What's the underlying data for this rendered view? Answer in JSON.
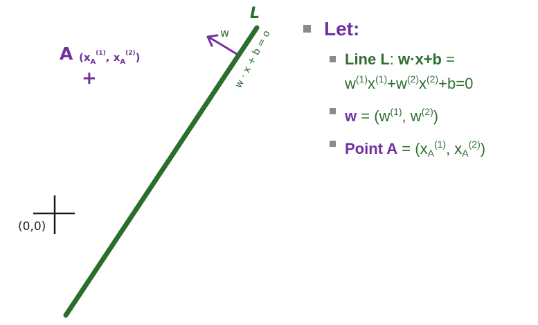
{
  "left": {
    "point_a_label": "A",
    "point_a_coord_open": "(x",
    "point_a_sub1": "A",
    "point_a_sup1": "(1)",
    "point_a_mid": ", x",
    "point_a_sub2": "A",
    "point_a_sup2": "(2)",
    "point_a_close": ")",
    "point_a_marker": "+",
    "origin_label": "(0,0)",
    "line_label": "L",
    "w_label": "w",
    "line_equation": "w · x + b = o"
  },
  "right": {
    "heading": "Let:",
    "line_item": {
      "bold_prefix": "Line L",
      "bold_eq": "w·x+b",
      "eq_sign": " =",
      "expanded": [
        {
          "base": "w",
          "sup": "(1)"
        },
        {
          "base": "x",
          "sup": "(1)"
        },
        {
          "base": "+w",
          "sup": "(2)"
        },
        {
          "base": "x",
          "sup": "(2)"
        },
        {
          "base": "+b=0",
          "sup": ""
        }
      ]
    },
    "w_item": {
      "bold": "w",
      "text_open": " = (w",
      "sup1": "(1)",
      "text_mid": ", w",
      "sup2": "(2)",
      "text_close": ")"
    },
    "point_item": {
      "bold": "Point A",
      "text_open": " = (x",
      "sub1": "A",
      "sup1": "(1)",
      "text_mid": ", x",
      "sub2": "A",
      "sup2": "(2)",
      "text_close": ")"
    }
  },
  "colors": {
    "line_green": "#2a6e2a",
    "text_green": "#2f6e2f",
    "purple": "#7030a0",
    "bullet_gray": "#8a8a8a",
    "axis_black": "#1a1a1a"
  },
  "icons": {
    "w_arrow": "normal-vector-arrow",
    "bullet": "square-bullet"
  }
}
